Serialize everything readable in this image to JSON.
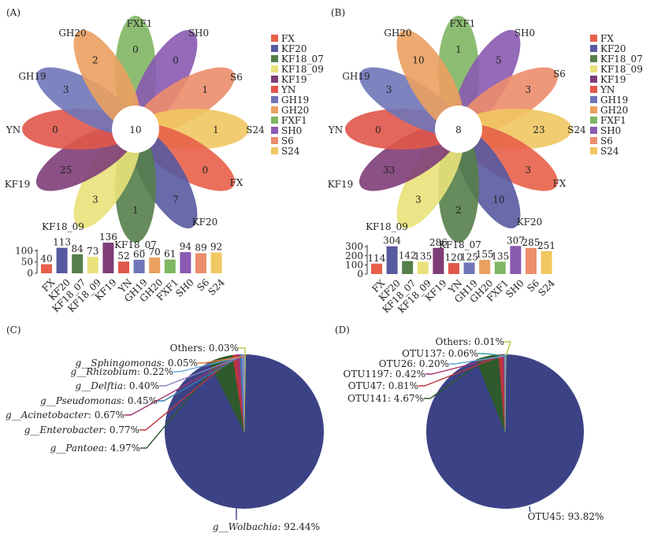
{
  "colors": {
    "FX": "#e8604a",
    "KF20": "#585aa0",
    "KF18_07": "#557e4a",
    "KF18_09": "#e9e27a",
    "KF19": "#7e3d78",
    "YN": "#e0574a",
    "GH19": "#6f75b8",
    "GH20": "#eba060",
    "FXF1": "#7fb663",
    "SH0": "#8a5ab0",
    "S6": "#ec8d6c",
    "S24": "#f1c760"
  },
  "chart_data": [
    {
      "type": "flower-venn",
      "panel": "(A)",
      "center_value": 10,
      "petals": [
        {
          "name": "FXF1",
          "value": 0
        },
        {
          "name": "SH0",
          "value": 0
        },
        {
          "name": "S6",
          "value": 1
        },
        {
          "name": "S24",
          "value": 1
        },
        {
          "name": "FX",
          "value": 0
        },
        {
          "name": "KF20",
          "value": 7
        },
        {
          "name": "KF18_07",
          "value": 1
        },
        {
          "name": "KF18_09",
          "value": 3
        },
        {
          "name": "KF19",
          "value": 25
        },
        {
          "name": "YN",
          "value": 0
        },
        {
          "name": "GH19",
          "value": 3
        },
        {
          "name": "GH20",
          "value": 2
        }
      ],
      "legend": [
        "FX",
        "KF20",
        "KF18_07",
        "KF18_09",
        "KF19",
        "YN",
        "GH19",
        "GH20",
        "FXF1",
        "SH0",
        "S6",
        "S24"
      ]
    },
    {
      "type": "bar",
      "panel": "(A)",
      "categories": [
        "FX",
        "KF20",
        "KF18_07",
        "KF18_09",
        "KF19",
        "YN",
        "GH19",
        "GH20",
        "FXF1",
        "SH0",
        "S6",
        "S24"
      ],
      "values": [
        40,
        113,
        84,
        73,
        136,
        52,
        60,
        70,
        61,
        94,
        89,
        92
      ],
      "ylim": [
        0,
        140
      ],
      "yticks": [
        0,
        50,
        100
      ]
    },
    {
      "type": "flower-venn",
      "panel": "(B)",
      "center_value": 8,
      "petals": [
        {
          "name": "FXF1",
          "value": 1
        },
        {
          "name": "SH0",
          "value": 5
        },
        {
          "name": "S6",
          "value": 3
        },
        {
          "name": "S24",
          "value": 23
        },
        {
          "name": "FX",
          "value": 3
        },
        {
          "name": "KF20",
          "value": 10
        },
        {
          "name": "KF18_07",
          "value": 2
        },
        {
          "name": "KF18_09",
          "value": 3
        },
        {
          "name": "KF19",
          "value": 33
        },
        {
          "name": "YN",
          "value": 0
        },
        {
          "name": "GH19",
          "value": 3
        },
        {
          "name": "GH20",
          "value": 10
        }
      ],
      "legend": [
        "FX",
        "KF20",
        "KF18_07",
        "KF18_09",
        "KF19",
        "YN",
        "GH19",
        "GH20",
        "FXF1",
        "SH0",
        "S6",
        "S24"
      ]
    },
    {
      "type": "bar",
      "panel": "(B)",
      "categories": [
        "FX",
        "KF20",
        "KF18_07",
        "KF18_09",
        "KF19",
        "YN",
        "GH19",
        "GH20",
        "FXF1",
        "SH0",
        "S6",
        "S24"
      ],
      "values": [
        114,
        304,
        142,
        135,
        286,
        120,
        125,
        155,
        135,
        307,
        285,
        251
      ],
      "ylim": [
        0,
        310
      ],
      "yticks": [
        0,
        100,
        200,
        300
      ]
    },
    {
      "type": "pie",
      "panel": "(C)",
      "slices": [
        {
          "label": "g__Wolbachia",
          "value": 92.44,
          "pct": "92.44%",
          "color": "#3b4386"
        },
        {
          "label": "g__Pantoea",
          "value": 4.97,
          "pct": "4.97%",
          "color": "#2e5a2e"
        },
        {
          "label": "g__Enterobacter",
          "value": 0.77,
          "pct": "0.77%",
          "color": "#c0353a"
        },
        {
          "label": "g__Acinetobacter",
          "value": 0.67,
          "pct": "0.67%",
          "color": "#a43470"
        },
        {
          "label": "g__Pseudomonas",
          "value": 0.45,
          "pct": "0.45%",
          "color": "#3d7fb0"
        },
        {
          "label": "g__Delftia",
          "value": 0.4,
          "pct": "0.40%",
          "color": "#8e83c2"
        },
        {
          "label": "g__Rhizobium",
          "value": 0.22,
          "pct": "0.22%",
          "color": "#6aa6d8"
        },
        {
          "label": "g__Sphingomonas",
          "value": 0.05,
          "pct": "0.05%",
          "color": "#e07a3a"
        },
        {
          "label": "Others",
          "value": 0.03,
          "pct": "0.03%",
          "color": "#b7c94a"
        }
      ]
    },
    {
      "type": "pie",
      "panel": "(D)",
      "slices": [
        {
          "label": "OTU45",
          "value": 93.82,
          "pct": "93.82%",
          "color": "#3b4386"
        },
        {
          "label": "OTU141",
          "value": 4.67,
          "pct": "4.67%",
          "color": "#2e5a2e"
        },
        {
          "label": "OTU47",
          "value": 0.81,
          "pct": "0.81%",
          "color": "#c0353a"
        },
        {
          "label": "OTU1197",
          "value": 0.42,
          "pct": "0.42%",
          "color": "#a43470"
        },
        {
          "label": "OTU26",
          "value": 0.2,
          "pct": "0.20%",
          "color": "#6aa6d8"
        },
        {
          "label": "OTU137",
          "value": 0.06,
          "pct": "0.06%",
          "color": "#3aa0a0"
        },
        {
          "label": "Others",
          "value": 0.01,
          "pct": "0.01%",
          "color": "#b7c94a"
        }
      ]
    }
  ]
}
